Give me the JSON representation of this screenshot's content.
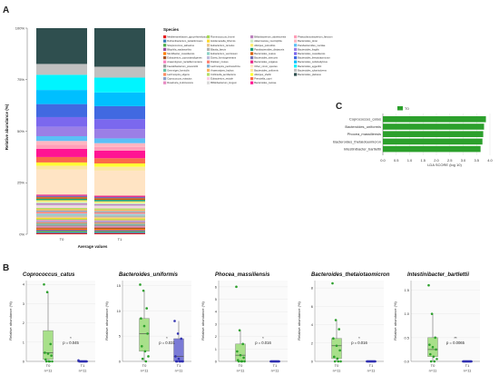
{
  "panels": {
    "a": "A",
    "b": "B",
    "c": "C"
  },
  "chart_data": [
    {
      "type": "bar",
      "id": "panel-a",
      "stacked": true,
      "categories": [
        "T0",
        "T1"
      ],
      "xlabel": "Average values",
      "ylabel": "Relative abundance (%)",
      "yticks": [
        "0%",
        "25%",
        "50%",
        "75%",
        "100%"
      ],
      "ylim": [
        0,
        100
      ],
      "legend_title": "Species",
      "legend_placement": "right",
      "species": [
        {
          "name": "Mediterraneibacter_glycyrrhizinilyticus",
          "color": "#e41a1c",
          "t0": 0.5,
          "t1": 0.5
        },
        {
          "name": "Ruthenibacterium_lactatiformans",
          "color": "#377eb8",
          "t0": 0.5,
          "t1": 0.5
        },
        {
          "name": "Streptococcus_salivarius",
          "color": "#4daf4a",
          "t0": 0.6,
          "t1": 0.5
        },
        {
          "name": "Bilophila_wadsworthia",
          "color": "#984ea3",
          "t0": 0.5,
          "t1": 0.5
        },
        {
          "name": "Merdibacter_massiliensis",
          "color": "#ff7f00",
          "t0": 0.5,
          "t1": 0.5
        },
        {
          "name": "Eubacterium_coprostanoligenes",
          "color": "#a65628",
          "t0": 0.5,
          "t1": 0.6
        },
        {
          "name": "Anaerotignum_lactatifermentans",
          "color": "#f781bf",
          "t0": 0.5,
          "t1": 0.5
        },
        {
          "name": "Faecalibacterium_prausnitzii",
          "color": "#999999",
          "t0": 0.9,
          "t1": 0.8
        },
        {
          "name": "Gemmiger_formicilis",
          "color": "#66c2a5",
          "t0": 0.5,
          "t1": 0.5
        },
        {
          "name": "Lachnospira_eligens",
          "color": "#fc8d62",
          "t0": 0.5,
          "t1": 0.5
        },
        {
          "name": "Coprococcus_eutactus",
          "color": "#8da0cb",
          "t0": 0.5,
          "t1": 0.5
        },
        {
          "name": "Roseburia_inulinivorans",
          "color": "#e78ac3",
          "t0": 0.6,
          "t1": 0.5
        },
        {
          "name": "Ruminococcus_bromii",
          "color": "#a6d854",
          "t0": 0.5,
          "t1": 0.5
        },
        {
          "name": "Holdemanella_biformis",
          "color": "#ffd92f",
          "t0": 0.5,
          "t1": 0.5
        },
        {
          "name": "Eubacterium_ramulus",
          "color": "#e5c494",
          "t0": 0.5,
          "t1": 0.5
        },
        {
          "name": "Blautia_faecis",
          "color": "#b3b3b3",
          "t0": 0.6,
          "t1": 0.6
        },
        {
          "name": "Eubacterium_ventriosum",
          "color": "#8dd3c7",
          "t0": 0.5,
          "t1": 0.5
        },
        {
          "name": "Dorea_formicigenerans",
          "color": "#bebada",
          "t0": 0.5,
          "t1": 0.5
        },
        {
          "name": "Dialister_invisus",
          "color": "#fb8072",
          "t0": 0.7,
          "t1": 0.6
        },
        {
          "name": "Lachnospira_pectinoschiza",
          "color": "#80b1d3",
          "t0": 0.5,
          "t1": 0.5
        },
        {
          "name": "Anaerostipes_hadrus",
          "color": "#fdb462",
          "t0": 0.6,
          "t1": 0.6
        },
        {
          "name": "Collinsella_aerofaciens",
          "color": "#b3de69",
          "t0": 0.7,
          "t1": 0.7
        },
        {
          "name": "Eubacterium_rectale",
          "color": "#fccde5",
          "t0": 0.7,
          "t1": 0.7
        },
        {
          "name": "Bifidobacterium_longum",
          "color": "#d9d9d9",
          "t0": 0.7,
          "t1": 0.6
        },
        {
          "name": "Bifidobacterium_adolescentis",
          "color": "#bc80bd",
          "t0": 0.7,
          "t1": 0.6
        },
        {
          "name": "Akkermansia_muciniphila",
          "color": "#ccebc5",
          "t0": 0.6,
          "t1": 0.6
        },
        {
          "name": "Alistipes_putredinis",
          "color": "#ffed6f",
          "t0": 0.8,
          "t1": 0.7
        },
        {
          "name": "Parabacteroides_distasonis",
          "color": "#1b9e77",
          "t0": 0.7,
          "t1": 0.7
        },
        {
          "name": "Bacteroides_ovatus",
          "color": "#d95f02",
          "t0": 0.7,
          "t1": 0.7
        },
        {
          "name": "Bacteroides_stercoris",
          "color": "#7570b3",
          "t0": 0.6,
          "t1": 0.6
        },
        {
          "name": "Bacteroides_vulgatus",
          "color": "#e7298a",
          "t0": 0.6,
          "t1": 0.6
        },
        {
          "name": "Other_minor_species",
          "color": "#ffe4c4",
          "t0": 11.5,
          "t1": 11.5
        },
        {
          "name": "Bacteroides_uniformis",
          "color": "#fbe6a2",
          "t0": 1.8,
          "t1": 1.8
        },
        {
          "name": "Alistipes_shahii",
          "color": "#ffff33",
          "t0": 1.5,
          "t1": 1.5
        },
        {
          "name": "Prevotella_copri",
          "color": "#fb6a4a",
          "t0": 2.5,
          "t1": 2.4
        },
        {
          "name": "Bacteroides_caccae",
          "color": "#ff1493",
          "t0": 3.8,
          "t1": 3.5
        },
        {
          "name": "Phascolarctobacterium_faecium",
          "color": "#ff9eb8",
          "t0": 1.8,
          "t1": 1.7
        },
        {
          "name": "Bacteroides_dorei",
          "color": "#ffb6c1",
          "t0": 1.8,
          "t1": 1.7
        },
        {
          "name": "Parabacteroides_merdae",
          "color": "#5bc0f6",
          "t0": 2.2,
          "t1": 2.2
        },
        {
          "name": "Bacteroides_fragilis",
          "color": "#9b7fe6",
          "t0": 4.3,
          "t1": 4.3
        },
        {
          "name": "Bacteroides_massiliensis",
          "color": "#7b68ee",
          "t0": 4.5,
          "t1": 4.5
        },
        {
          "name": "Bacteroides_thetaiotaomicron",
          "color": "#4169e1",
          "t0": 6.0,
          "t1": 6.0
        },
        {
          "name": "Bacteroides_cellulosilyticus",
          "color": "#00bfff",
          "t0": 6.5,
          "t1": 6.3
        },
        {
          "name": "Bacteroides_eggerthii",
          "color": "#00f5ff",
          "t0": 7.0,
          "t1": 6.8
        },
        {
          "name": "Bacteroides_xylanisolvens",
          "color": "#c0c0c0",
          "t0": 5.0,
          "t1": 5.0
        },
        {
          "name": "Bacteroides_plebeius",
          "color": "#2f4f4f",
          "t0": 16.5,
          "t1": 17.7
        }
      ]
    },
    {
      "type": "bar",
      "id": "panel-c",
      "orientation": "horizontal",
      "legend": [
        "T0"
      ],
      "legend_placement": "top",
      "series": [
        {
          "name": "T0",
          "color": "#2ca02c"
        }
      ],
      "categories": [
        "Coprococcus_catus",
        "Bacteroides_uniformis",
        "Phocea_massiliensis",
        "Bacteroides_thetaiotaomicron",
        "Intestinibacter_bartlettii"
      ],
      "values": [
        3.85,
        3.78,
        3.75,
        3.72,
        3.65
      ],
      "xlabel": "LDA SCORE (log 10)",
      "xticks": [
        "0.0",
        "0.5",
        "1.0",
        "1.5",
        "2.0",
        "2.5",
        "3.0",
        "3.5",
        "4.0"
      ],
      "xlim": [
        0,
        4
      ]
    },
    {
      "type": "box",
      "id": "panel-b",
      "ylabel": "Relative abundance (%)",
      "groups": [
        "T0",
        "T1"
      ],
      "counts": [
        "n=11",
        "n=11"
      ],
      "colors": {
        "T0": "#a8e08a",
        "T1": "#7b7bd6",
        "T0_point": "#2ca02c",
        "T1_point": "#3030b0"
      },
      "plots": [
        {
          "title": "Coprococcus_catus",
          "pvalue": "p = 0.045",
          "stars": "*",
          "yticks": [
            "0",
            "1",
            "2",
            "3",
            "4"
          ],
          "ymax": 4.2,
          "t0": {
            "q1": 0.1,
            "median": 0.45,
            "q3": 1.6,
            "lo": 0.0,
            "hi": 3.6,
            "points": [
              4.0,
              3.6,
              0.9,
              0.45,
              0.4,
              0.3,
              0.1,
              0.0,
              0.0,
              0.0,
              0.0
            ]
          },
          "t1": {
            "q1": 0.0,
            "median": 0.0,
            "q3": 0.0,
            "lo": 0.0,
            "hi": 0.05,
            "points": [
              0.05,
              0.0,
              0.0,
              0.0,
              0.0,
              0.0,
              0.0,
              0.0,
              0.0,
              0.0,
              0.0
            ]
          }
        },
        {
          "title": "Bacteroides_uniformis",
          "pvalue": "p = 0.031",
          "stars": "*",
          "yticks": [
            "0",
            "5",
            "10",
            "15"
          ],
          "ymax": 16,
          "t0": {
            "q1": 2.0,
            "median": 5.5,
            "q3": 8.5,
            "lo": 0.0,
            "hi": 14.0,
            "points": [
              15.2,
              14.0,
              10.5,
              8.5,
              7.0,
              5.5,
              3.0,
              2.0,
              1.0,
              0.5,
              0.0
            ]
          },
          "t1": {
            "q1": 0.0,
            "median": 1.0,
            "q3": 4.5,
            "lo": 0.0,
            "hi": 8.0,
            "points": [
              8.0,
              5.5,
              4.5,
              1.0,
              0.5,
              0.0,
              0.0,
              0.0,
              0.0,
              0.0,
              0.0
            ]
          }
        },
        {
          "title": "Phocea_massiliensis",
          "pvalue": "p = 0.016",
          "stars": "*",
          "yticks": [
            "0",
            "1",
            "2",
            "3",
            "4",
            "5",
            "6"
          ],
          "ymax": 6.5,
          "t0": {
            "q1": 0.0,
            "median": 0.5,
            "q3": 1.4,
            "lo": 0.0,
            "hi": 2.5,
            "points": [
              6.0,
              2.5,
              1.4,
              0.8,
              0.5,
              0.3,
              0.1,
              0.0,
              0.0,
              0.0,
              0.0
            ]
          },
          "t1": {
            "q1": 0.0,
            "median": 0.0,
            "q3": 0.0,
            "lo": 0.0,
            "hi": 0.0,
            "points": [
              0.0,
              0.0,
              0.0,
              0.0,
              0.0,
              0.0,
              0.0,
              0.0,
              0.0,
              0.0,
              0.0
            ]
          }
        },
        {
          "title": "Bacteroides_thetaiotaomicron",
          "pvalue": "p = 0.016",
          "stars": "*",
          "yticks": [
            "0",
            "2",
            "4",
            "6",
            "8"
          ],
          "ymax": 8.8,
          "t0": {
            "q1": 0.3,
            "median": 1.7,
            "q3": 2.5,
            "lo": 0.0,
            "hi": 4.5,
            "points": [
              8.5,
              4.5,
              3.5,
              2.5,
              1.7,
              1.2,
              0.5,
              0.3,
              0.0,
              0.0,
              0.0
            ]
          },
          "t1": {
            "q1": 0.0,
            "median": 0.0,
            "q3": 0.0,
            "lo": 0.0,
            "hi": 0.0,
            "points": [
              0.0,
              0.0,
              0.0,
              0.0,
              0.0,
              0.0,
              0.0,
              0.0,
              0.0,
              0.0,
              0.0
            ]
          }
        },
        {
          "title": "Intestinibacter_bartlettii",
          "pvalue": "p = 0.0065",
          "stars": "**",
          "yticks": [
            "0.0",
            "0.5",
            "1.0",
            "1.5"
          ],
          "ymax": 1.7,
          "t0": {
            "q1": 0.1,
            "median": 0.25,
            "q3": 0.5,
            "lo": 0.0,
            "hi": 1.0,
            "points": [
              1.6,
              1.0,
              0.5,
              0.35,
              0.3,
              0.25,
              0.15,
              0.1,
              0.05,
              0.0,
              0.0
            ]
          },
          "t1": {
            "q1": 0.0,
            "median": 0.0,
            "q3": 0.0,
            "lo": 0.0,
            "hi": 0.0,
            "points": [
              0.0,
              0.0,
              0.0,
              0.0,
              0.0,
              0.0,
              0.0,
              0.0,
              0.0,
              0.0,
              0.0
            ]
          }
        }
      ]
    }
  ]
}
